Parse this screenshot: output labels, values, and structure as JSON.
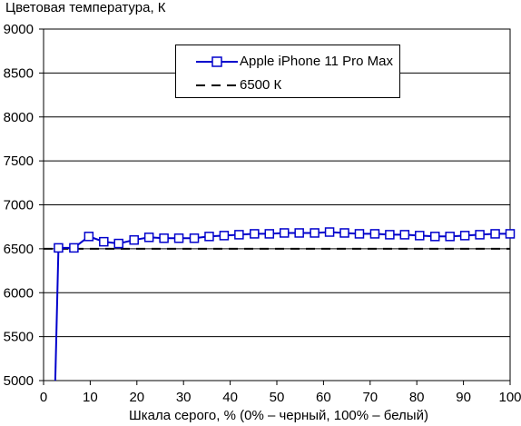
{
  "chart_data": {
    "type": "line",
    "ylabel": "Цветовая температура, К",
    "xlabel": "Шкала серого, % (0% – черный, 100% – белый)",
    "xlim": [
      0,
      100
    ],
    "ylim": [
      5000,
      9000
    ],
    "x_ticks": [
      0,
      10,
      20,
      30,
      40,
      50,
      60,
      70,
      80,
      90,
      100
    ],
    "y_ticks": [
      5000,
      5500,
      6000,
      6500,
      7000,
      7500,
      8000,
      8500,
      9000
    ],
    "grid": "horizontal",
    "legend_position": "top-center",
    "series": [
      {
        "name": "Apple iPhone 11 Pro Max",
        "color": "#0000cc",
        "marker": "square",
        "x": [
          2.5,
          3.2,
          6.5,
          9.7,
          12.9,
          16.1,
          19.4,
          22.6,
          25.8,
          29.0,
          32.3,
          35.5,
          38.7,
          41.9,
          45.2,
          48.4,
          51.6,
          54.8,
          58.1,
          61.3,
          64.5,
          67.7,
          71.0,
          74.2,
          77.4,
          80.6,
          83.9,
          87.1,
          90.3,
          93.5,
          96.8,
          100
        ],
        "y": [
          5000,
          6510,
          6510,
          6640,
          6580,
          6560,
          6600,
          6630,
          6620,
          6620,
          6620,
          6640,
          6650,
          6660,
          6670,
          6670,
          6680,
          6680,
          6680,
          6690,
          6680,
          6670,
          6670,
          6660,
          6660,
          6650,
          6640,
          6640,
          6650,
          6660,
          6670,
          6670
        ],
        "markers_from_index": 1
      },
      {
        "name": "6500 К",
        "color": "#000000",
        "style": "dashed",
        "x": [
          0,
          100
        ],
        "y": [
          6500,
          6500
        ]
      }
    ]
  }
}
